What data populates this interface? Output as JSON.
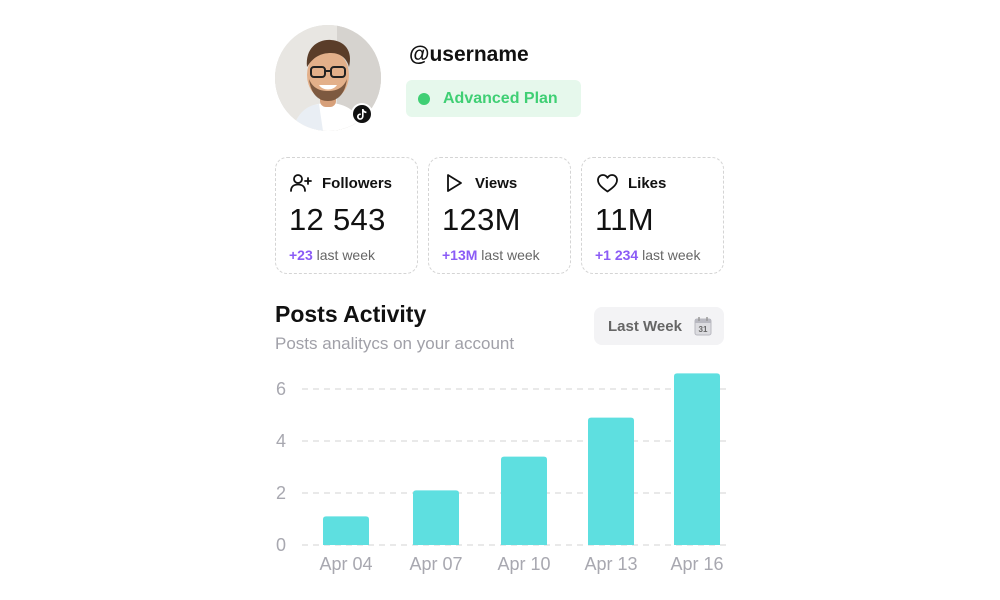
{
  "profile": {
    "username": "@username",
    "plan_label": "Advanced Plan",
    "plan_color": "#3fcf74",
    "avatar_icon": "user-photo",
    "platform_icon": "tiktok-icon"
  },
  "stats": [
    {
      "icon": "user-plus-icon",
      "title": "Followers",
      "value": "12 543",
      "delta": "+23",
      "delta_suffix": " last week"
    },
    {
      "icon": "play-icon",
      "title": "Views",
      "value": "123M",
      "delta": "+13M",
      "delta_suffix": " last week"
    },
    {
      "icon": "heart-icon",
      "title": "Likes",
      "value": "11M",
      "delta": "+1 234",
      "delta_suffix": " last week"
    }
  ],
  "activity": {
    "title": "Posts Activity",
    "subtitle": "Posts analitycs on your account",
    "period_label": "Last Week",
    "calendar_day": "31"
  },
  "colors": {
    "accent_delta": "#8b5cf6",
    "bar": "#5edfe0",
    "grid": "#dcdcdc",
    "axis_text": "#a8a8b0"
  },
  "chart_data": {
    "type": "bar",
    "categories": [
      "Apr 04",
      "Apr 07",
      "Apr 10",
      "Apr 13",
      "Apr 16"
    ],
    "values": [
      1.1,
      2.1,
      3.4,
      4.9,
      6.6
    ],
    "yticks": [
      0,
      2,
      4,
      6
    ],
    "ylim": [
      0,
      6.6
    ],
    "grid": true,
    "title": "",
    "xlabel": "",
    "ylabel": ""
  }
}
